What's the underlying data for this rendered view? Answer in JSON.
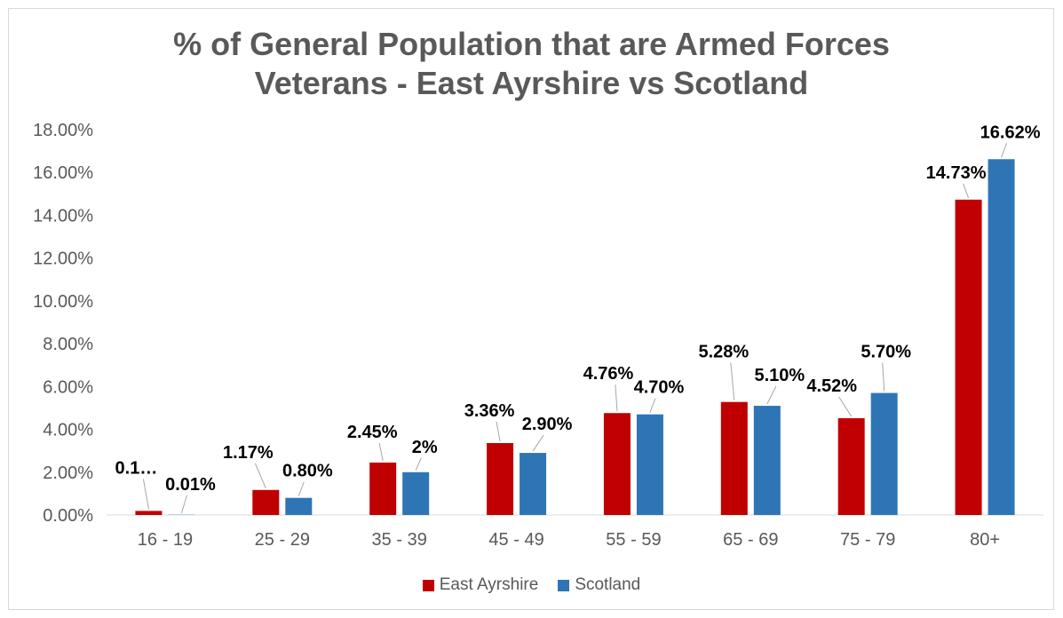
{
  "chart_data": {
    "type": "bar",
    "title_line1": "% of General Population that are Armed Forces",
    "title_line2": "Veterans - East Ayrshire vs Scotland",
    "categories": [
      "16 - 19",
      "25 - 29",
      "35 - 39",
      "45 - 49",
      "55 - 59",
      "65 - 69",
      "75 - 79",
      "80+"
    ],
    "series": [
      {
        "name": "East Ayrshire",
        "color": "#c00000",
        "values": [
          0.19,
          1.17,
          2.45,
          3.36,
          4.76,
          5.28,
          4.52,
          14.73
        ],
        "labels": [
          "0.1…",
          "1.17%",
          "2.45%",
          "3.36%",
          "4.76%",
          "5.28%",
          "4.52%",
          "14.73%"
        ]
      },
      {
        "name": "Scotland",
        "color": "#2e75b6",
        "values": [
          0.01,
          0.8,
          2.0,
          2.9,
          4.7,
          5.1,
          5.7,
          16.62
        ],
        "labels": [
          "0.01%",
          "0.80%",
          "2%",
          "2.90%",
          "4.70%",
          "5.10%",
          "5.70%",
          "16.62%"
        ]
      }
    ],
    "y_ticks": [
      "0.00%",
      "2.00%",
      "4.00%",
      "6.00%",
      "8.00%",
      "10.00%",
      "12.00%",
      "14.00%",
      "16.00%",
      "18.00%"
    ],
    "ylim": [
      0,
      18
    ],
    "grid": false,
    "legend_position": "bottom"
  }
}
